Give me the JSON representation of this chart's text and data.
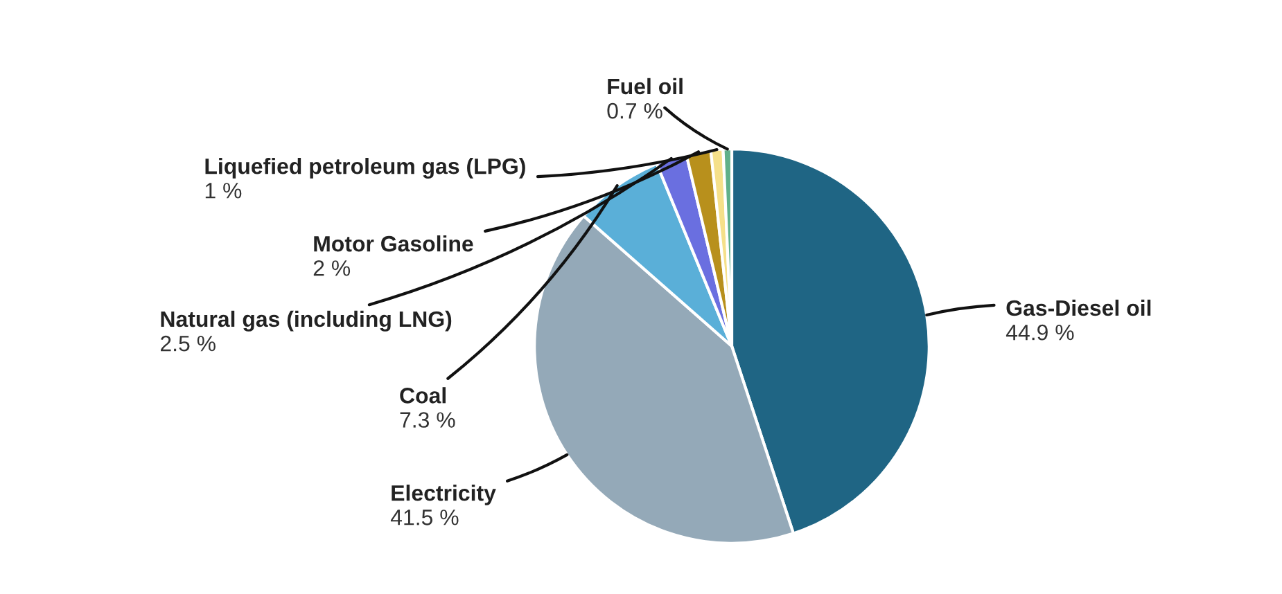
{
  "chart_data": {
    "type": "pie",
    "categories": [
      "Gas-Diesel oil",
      "Electricity",
      "Coal",
      "Natural gas (including LNG)",
      "Motor Gasoline",
      "Liquefied petroleum gas (LPG)",
      "Fuel oil"
    ],
    "values": [
      44.9,
      41.5,
      7.3,
      2.5,
      2,
      1,
      0.7
    ],
    "colors": [
      "#1f6584",
      "#94a9b8",
      "#5aafd8",
      "#6a6fe0",
      "#b8901c",
      "#f5e08a",
      "#5fb08a"
    ],
    "value_labels": [
      "44.9 %",
      "41.5 %",
      "7.3 %",
      "2.5 %",
      "2 %",
      "1 %",
      "0.7 %"
    ]
  }
}
